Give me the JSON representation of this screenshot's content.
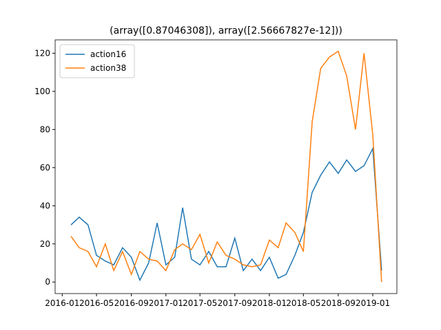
{
  "chart_data": {
    "type": "line",
    "title": "(array([0.87046308]), array([2.56667827e-12]))",
    "x": [
      "2016-02",
      "2016-03",
      "2016-04",
      "2016-05",
      "2016-06",
      "2016-07",
      "2016-08",
      "2016-09",
      "2016-10",
      "2016-11",
      "2016-12",
      "2017-01",
      "2017-02",
      "2017-03",
      "2017-04",
      "2017-05",
      "2017-06",
      "2017-07",
      "2017-08",
      "2017-09",
      "2017-10",
      "2017-11",
      "2017-12",
      "2018-01",
      "2018-02",
      "2018-03",
      "2018-04",
      "2018-05",
      "2018-06",
      "2018-07",
      "2018-08",
      "2018-09",
      "2018-10",
      "2018-11",
      "2018-12",
      "2019-01",
      "2019-02"
    ],
    "series": [
      {
        "name": "action16",
        "color": "#1f77b4",
        "values": [
          30,
          34,
          30,
          14,
          11,
          9,
          18,
          13,
          1,
          10,
          31,
          9,
          13,
          39,
          12,
          9,
          16,
          8,
          8,
          23,
          6,
          12,
          6,
          13,
          2,
          4,
          14,
          26,
          47,
          56,
          63,
          57,
          64,
          58,
          61,
          70,
          6
        ]
      },
      {
        "name": "action38",
        "color": "#ff7f0e",
        "values": [
          24,
          18,
          16,
          8,
          20,
          6,
          16,
          4,
          16,
          12,
          11,
          6,
          17,
          20,
          17,
          25,
          10,
          21,
          14,
          12,
          9,
          8,
          9,
          22,
          18,
          31,
          26,
          16,
          84,
          112,
          118,
          121,
          108,
          80,
          120,
          77,
          0
        ]
      }
    ],
    "xlim": [
      "2015-12-07",
      "2019-03-27"
    ],
    "xticks": [
      "2016-01",
      "2016-05",
      "2016-09",
      "2017-01",
      "2017-05",
      "2017-09",
      "2018-01",
      "2018-05",
      "2018-09",
      "2019-01"
    ],
    "ylim": [
      -6.05,
      127
    ],
    "yticks": [
      0,
      20,
      40,
      60,
      80,
      100,
      120
    ],
    "grid": false,
    "legend": "upper left"
  }
}
